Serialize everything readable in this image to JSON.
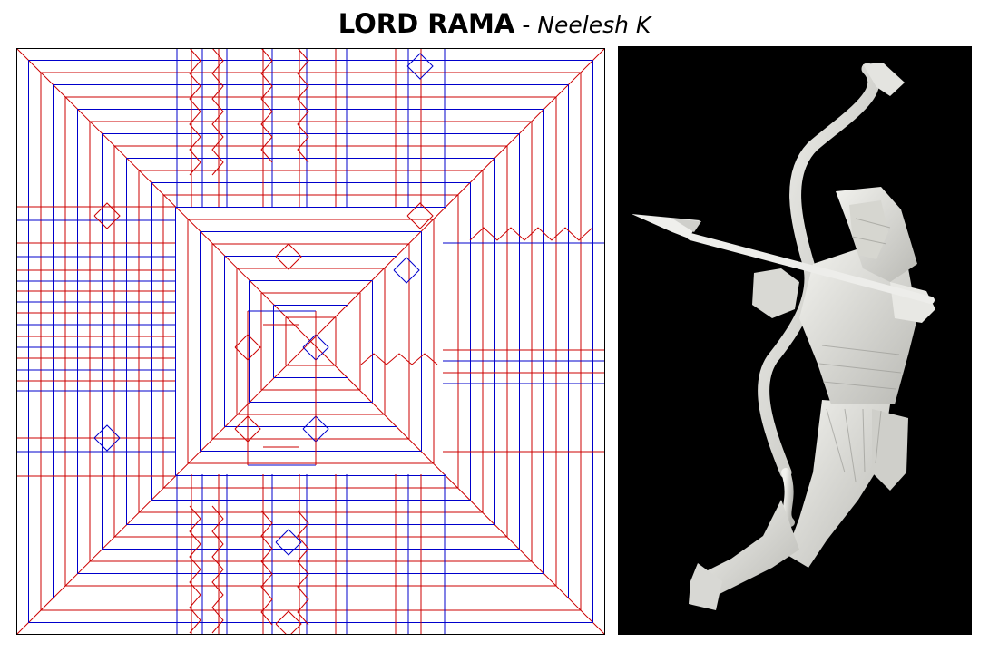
{
  "title": {
    "main": "LORD RAMA",
    "separator": " - ",
    "author": "Neelesh K"
  },
  "crease_pattern": {
    "mountain_color": "#cc0000",
    "valley_color": "#0000cc",
    "border_color": "#000000"
  },
  "photo": {
    "background_color": "#000000",
    "paper_color": "#e6e6e2",
    "subject_icon": "origami-archer-figure-icon"
  }
}
